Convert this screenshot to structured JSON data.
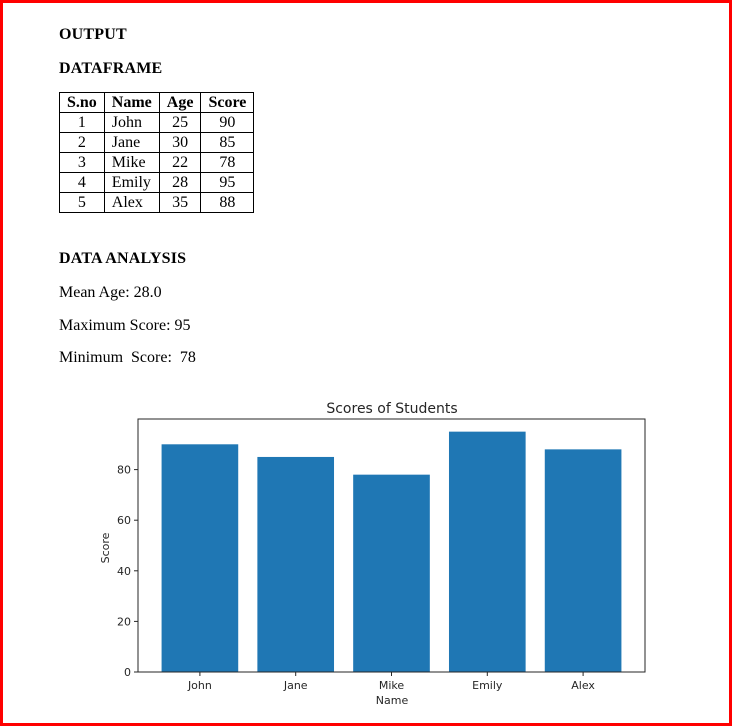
{
  "headings": {
    "output": "OUTPUT",
    "dataframe": "DATAFRAME",
    "analysis": "DATA ANALYSIS"
  },
  "table": {
    "columns": [
      "S.no",
      "Name",
      "Age",
      "Score"
    ],
    "rows": [
      [
        "1",
        "John",
        "25",
        "90"
      ],
      [
        "2",
        "Jane",
        "30",
        "85"
      ],
      [
        "3",
        "Mike",
        "22",
        "78"
      ],
      [
        "4",
        "Emily",
        "28",
        "95"
      ],
      [
        "5",
        "Alex",
        "35",
        "88"
      ]
    ]
  },
  "analysis": {
    "mean_age": "Mean Age: 28.0",
    "max_score": "Maximum Score: 95",
    "min_score": "Minimum  Score:  78"
  },
  "chart_data": {
    "type": "bar",
    "title": "Scores of Students",
    "xlabel": "Name",
    "ylabel": "Score",
    "categories": [
      "John",
      "Jane",
      "Mike",
      "Emily",
      "Alex"
    ],
    "values": [
      90,
      85,
      78,
      95,
      88
    ],
    "ylim": [
      0,
      100
    ],
    "yticks": [
      0,
      20,
      40,
      60,
      80
    ],
    "color": "#1f77b4",
    "grid": false
  },
  "colors": {
    "page_border": "#ff0000",
    "bar": "#1f77b4"
  }
}
